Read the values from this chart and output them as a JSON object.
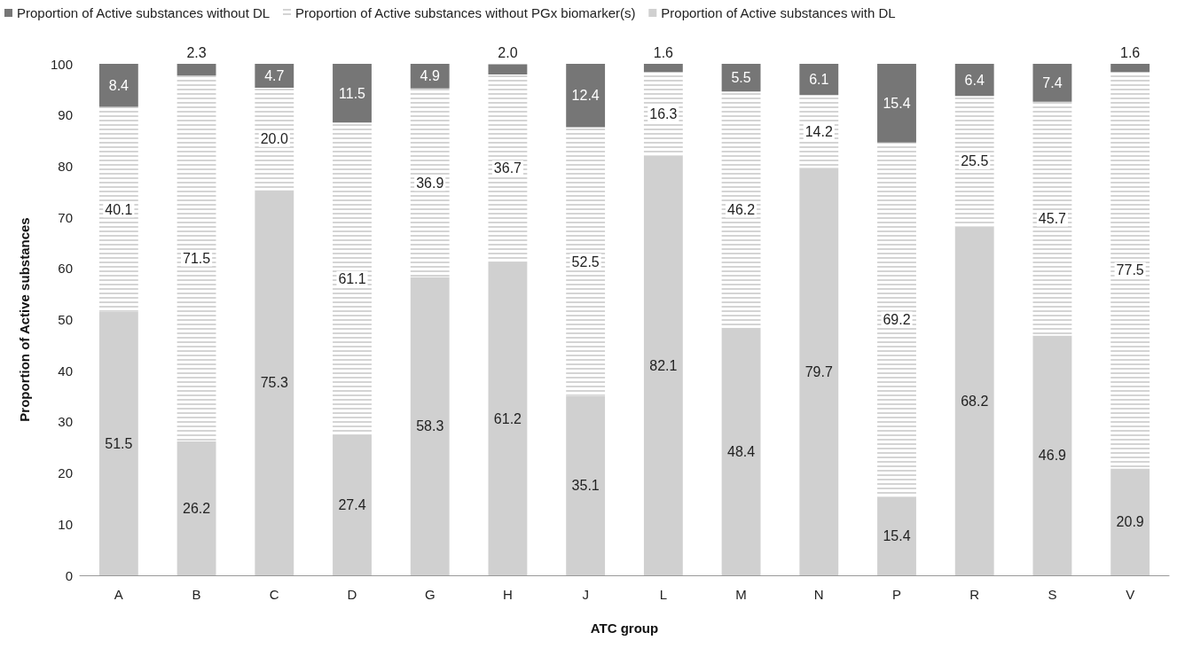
{
  "chart_data": {
    "type": "bar",
    "stacked": true,
    "xlabel": "ATC group",
    "ylabel": "Proportion of Active substances",
    "categories": [
      "A",
      "B",
      "C",
      "D",
      "G",
      "H",
      "J",
      "L",
      "M",
      "N",
      "P",
      "R",
      "S",
      "V"
    ],
    "series": [
      {
        "name": "Proportion of Active substances with DL",
        "color": "#d0d0d0",
        "values": [
          51.5,
          26.2,
          75.3,
          27.4,
          58.3,
          61.2,
          35.1,
          82.1,
          48.4,
          79.7,
          15.4,
          68.2,
          46.9,
          20.9
        ],
        "value_labels": [
          "51.5",
          "26.2",
          "75.3",
          "27.4",
          "58.3",
          "61.2",
          "35.1",
          "82.1",
          "48.4",
          "79.7",
          "15.4",
          "68.2",
          "46.9",
          "20.9"
        ]
      },
      {
        "name": "Proportion of Active substances without PGx biomarker(s)",
        "color": "#ffffff",
        "values": [
          40.1,
          71.5,
          20.0,
          61.1,
          36.9,
          36.7,
          52.5,
          16.3,
          46.2,
          14.2,
          69.2,
          25.5,
          45.7,
          77.5
        ],
        "value_labels": [
          "40.1",
          "71.5",
          "20.0",
          "61.1",
          "36.9",
          "36.7",
          "52.5",
          "16.3",
          "46.2",
          "14.2",
          "69.2",
          "25.5",
          "45.7",
          "77.5"
        ]
      },
      {
        "name": "Proportion of Active substances without DL",
        "color": "#767676",
        "values": [
          8.4,
          2.3,
          4.7,
          11.5,
          4.9,
          2.0,
          12.4,
          1.6,
          5.5,
          6.1,
          15.4,
          6.4,
          7.4,
          1.6
        ],
        "value_labels": [
          "8.4",
          "2.3",
          "4.7",
          "11.5",
          "4.9",
          "2.0",
          "12.4",
          "1.6",
          "5.5",
          "6.1",
          "15.4",
          "6.4",
          "7.4",
          "1.6"
        ]
      }
    ],
    "ylim": [
      0,
      100
    ],
    "yticks": [
      0,
      10,
      20,
      30,
      40,
      50,
      60,
      70,
      80,
      90,
      100
    ],
    "grid": false,
    "legend": "top left"
  }
}
